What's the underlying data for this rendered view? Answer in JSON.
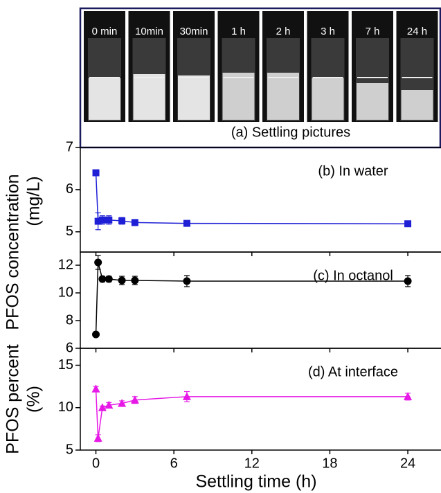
{
  "photos": {
    "labels": [
      "0 min",
      "10min",
      "30min",
      "1 h",
      "2 h",
      "3 h",
      "7 h",
      "24 h"
    ],
    "caption": "(a) Settling pictures"
  },
  "chart_data": [
    {
      "type": "line",
      "annotation": "(b) In water",
      "ylabel": "PFOS concentration",
      "ylabel_unit": "(mg/L)",
      "x": [
        0,
        0.167,
        0.5,
        1,
        2,
        3,
        7,
        24
      ],
      "xlim": [
        -1.2,
        26.5
      ],
      "xticks": [
        0,
        6,
        12,
        18,
        24
      ],
      "ylim": [
        4.52,
        7
      ],
      "yticks": [
        5,
        6,
        7
      ],
      "series": [
        {
          "color": "#1f1fd6",
          "marker": "square",
          "values": [
            6.4,
            5.25,
            5.28,
            5.28,
            5.26,
            5.22,
            5.2,
            5.19
          ],
          "errors": [
            0.05,
            0.2,
            0.1,
            0.1,
            0.08,
            0.07,
            0.03,
            0.03
          ]
        }
      ]
    },
    {
      "type": "line",
      "annotation": "(c) In octanol",
      "x": [
        0,
        0.167,
        0.5,
        1,
        2,
        3,
        7,
        24
      ],
      "xlim": [
        -1.2,
        26.5
      ],
      "xticks": [
        0,
        6,
        12,
        18,
        24
      ],
      "ylim": [
        6,
        12.95
      ],
      "yticks": [
        6,
        8,
        10,
        12
      ],
      "series": [
        {
          "color": "#000000",
          "marker": "circle",
          "values": [
            7.0,
            12.2,
            11.0,
            11.0,
            10.9,
            10.9,
            10.85,
            10.85
          ],
          "errors": [
            0.05,
            0.5,
            0.2,
            0.2,
            0.3,
            0.3,
            0.4,
            0.4
          ]
        }
      ]
    },
    {
      "type": "line",
      "annotation": "(d) At interface",
      "ylabel": "PFOS percent",
      "ylabel_unit": "(%)",
      "xlabel": "Settling time (h)",
      "x": [
        0,
        0.167,
        0.5,
        1,
        2,
        3,
        7,
        24
      ],
      "xlim": [
        -1.2,
        26.5
      ],
      "xticks": [
        0,
        6,
        12,
        18,
        24
      ],
      "ylim": [
        5,
        17
      ],
      "yticks": [
        5,
        10,
        15
      ],
      "series": [
        {
          "color": "#e619e6",
          "marker": "triangle",
          "values": [
            12.2,
            6.4,
            10.0,
            10.3,
            10.5,
            10.9,
            11.3,
            11.3
          ],
          "errors": [
            0.3,
            0.4,
            0.2,
            0.3,
            0.3,
            0.4,
            0.6,
            0.4
          ]
        }
      ]
    }
  ]
}
